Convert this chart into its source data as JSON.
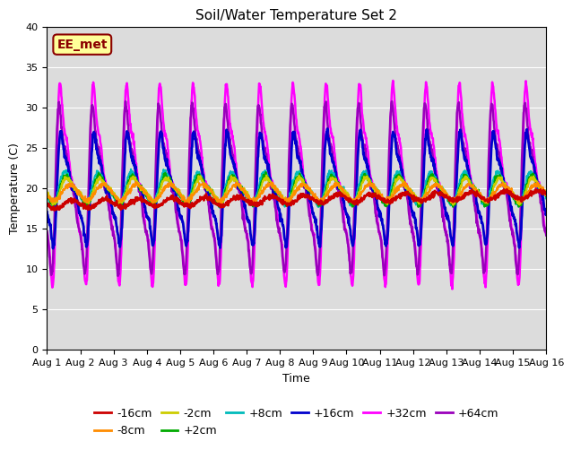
{
  "title": "Soil/Water Temperature Set 2",
  "xlabel": "Time",
  "ylabel": "Temperature (C)",
  "xlim": [
    0,
    15
  ],
  "ylim": [
    0,
    40
  ],
  "yticks": [
    0,
    5,
    10,
    15,
    20,
    25,
    30,
    35,
    40
  ],
  "xtick_labels": [
    "Aug 1",
    "Aug 2",
    "Aug 3",
    "Aug 4",
    "Aug 5",
    "Aug 6",
    "Aug 7",
    "Aug 8",
    "Aug 9",
    "Aug 10",
    "Aug 11",
    "Aug 12",
    "Aug 13",
    "Aug 14",
    "Aug 15",
    "Aug 16"
  ],
  "bg_color": "#dcdcdc",
  "annotation_text": "EE_met",
  "annotation_color": "#8b0000",
  "annotation_bg": "#ffff99",
  "series_order": [
    "-16cm",
    "-8cm",
    "-2cm",
    "+2cm",
    "+8cm",
    "+16cm",
    "+32cm",
    "+64cm"
  ],
  "series": {
    "-16cm": {
      "color": "#cc0000",
      "lw": 1.8,
      "mean": 18.0,
      "amp": 0.5,
      "phase": 0.5,
      "trend": 1.2,
      "sharpness": 1
    },
    "-8cm": {
      "color": "#ff8c00",
      "lw": 1.5,
      "mean": 19.5,
      "amp": 1.0,
      "phase": 0.45,
      "trend": 0.0,
      "sharpness": 1
    },
    "-2cm": {
      "color": "#cccc00",
      "lw": 1.5,
      "mean": 19.8,
      "amp": 1.5,
      "phase": 0.4,
      "trend": 0.0,
      "sharpness": 2
    },
    "+2cm": {
      "color": "#00aa00",
      "lw": 1.5,
      "mean": 19.8,
      "amp": 1.8,
      "phase": 0.38,
      "trend": 0.0,
      "sharpness": 2
    },
    "+8cm": {
      "color": "#00bbbb",
      "lw": 1.5,
      "mean": 20.0,
      "amp": 2.0,
      "phase": 0.35,
      "trend": 0.0,
      "sharpness": 2
    },
    "+16cm": {
      "color": "#0000cc",
      "lw": 2.0,
      "mean": 20.0,
      "amp": 7.0,
      "phase": 0.3,
      "trend": 0.0,
      "sharpness": 4
    },
    "+32cm": {
      "color": "#ff00ff",
      "lw": 1.8,
      "mean": 20.5,
      "amp": 12.5,
      "phase": 0.28,
      "trend": 0.0,
      "sharpness": 6
    },
    "+64cm": {
      "color": "#9900bb",
      "lw": 1.8,
      "mean": 20.0,
      "amp": 10.5,
      "phase": 0.25,
      "trend": 0.0,
      "sharpness": 6
    }
  },
  "n_points": 1500,
  "days": 15,
  "seed": 42
}
